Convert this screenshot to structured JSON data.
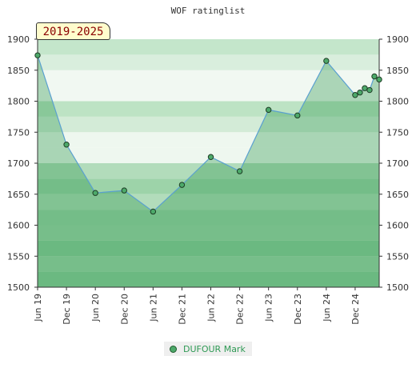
{
  "chart_data": {
    "type": "area",
    "title": "WOF ratinglist",
    "period": "2019-2025",
    "series": [
      {
        "name": "DUFOUR Mark",
        "color": "#2f9a55",
        "line_color": "#5aa0d0",
        "marker_color": "#4da96a",
        "points": [
          {
            "x": "2019-06",
            "y": 1874
          },
          {
            "x": "2019-12",
            "y": 1730
          },
          {
            "x": "2020-06",
            "y": 1652
          },
          {
            "x": "2020-12",
            "y": 1656
          },
          {
            "x": "2021-06",
            "y": 1622
          },
          {
            "x": "2021-12",
            "y": 1665
          },
          {
            "x": "2022-06",
            "y": 1710
          },
          {
            "x": "2022-12",
            "y": 1687
          },
          {
            "x": "2023-06",
            "y": 1786
          },
          {
            "x": "2023-12",
            "y": 1777
          },
          {
            "x": "2024-06",
            "y": 1865
          },
          {
            "x": "2024-12",
            "y": 1810
          },
          {
            "x": "2025-01",
            "y": 1814
          },
          {
            "x": "2025-02",
            "y": 1821
          },
          {
            "x": "2025-03",
            "y": 1818
          },
          {
            "x": "2025-04",
            "y": 1840
          },
          {
            "x": "2025-05",
            "y": 1835
          }
        ]
      }
    ],
    "x_tick_labels": [
      "Jun 19",
      "Dec 19",
      "Jun 20",
      "Dec 20",
      "Jun 21",
      "Dec 21",
      "Jun 22",
      "Dec 22",
      "Jun 23",
      "Dec 23",
      "Jun 24",
      "Dec 24"
    ],
    "x_tick_dates": [
      "2019-06",
      "2019-12",
      "2020-06",
      "2020-12",
      "2021-06",
      "2021-12",
      "2022-06",
      "2022-12",
      "2023-06",
      "2023-12",
      "2024-06",
      "2024-12"
    ],
    "x_range": [
      "2019-06",
      "2025-05"
    ],
    "y_ticks": [
      1500,
      1550,
      1600,
      1650,
      1700,
      1750,
      1800,
      1850,
      1900
    ],
    "ylim": [
      1500,
      1900
    ],
    "y_axis": "both left and right",
    "grid": "horizontal shaded bands",
    "legend": "bottom-center"
  }
}
